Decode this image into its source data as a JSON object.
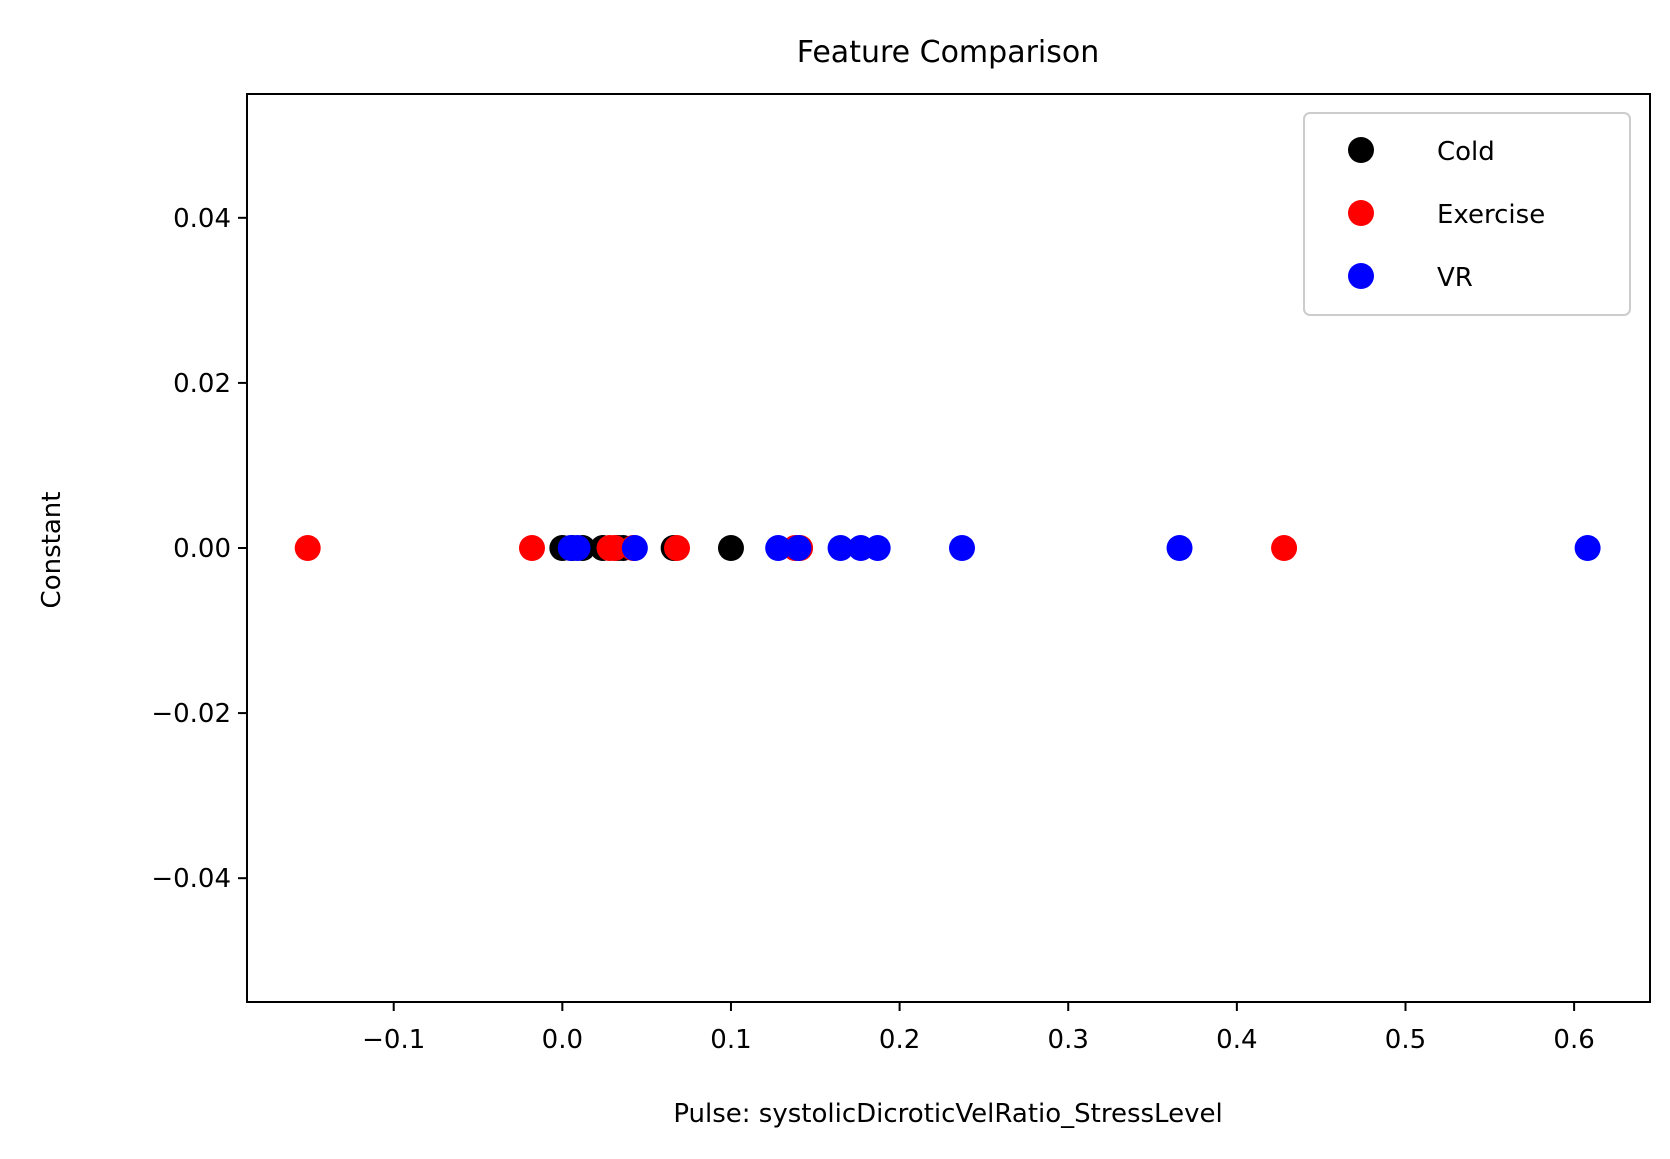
{
  "chart_data": {
    "type": "scatter",
    "title": "Feature Comparison",
    "xlabel": "Pulse: systolicDicroticVelRatio_StressLevel",
    "ylabel": "Constant",
    "xlim": [
      -0.187,
      0.645
    ],
    "ylim": [
      -0.055,
      0.055
    ],
    "xticks": [
      -0.1,
      0.0,
      0.1,
      0.2,
      0.3,
      0.4,
      0.5,
      0.6
    ],
    "xtick_labels": [
      "−0.1",
      "0.0",
      "0.1",
      "0.2",
      "0.3",
      "0.4",
      "0.5",
      "0.6"
    ],
    "yticks": [
      0.04,
      0.02,
      0.0,
      -0.02,
      -0.04
    ],
    "ytick_labels": [
      "0.04",
      "0.02",
      "0.00",
      "−0.02",
      "−0.04"
    ],
    "grid": false,
    "legend_position": "top-right",
    "series": [
      {
        "name": "Cold",
        "color": "#000000",
        "x": [
          0.0,
          0.006,
          0.012,
          0.024,
          0.033,
          0.036,
          0.066,
          0.1
        ],
        "y": [
          0,
          0,
          0,
          0,
          0,
          0,
          0,
          0
        ]
      },
      {
        "name": "Exercise",
        "color": "#ff0000",
        "x": [
          -0.151,
          -0.018,
          0.028,
          0.031,
          0.042,
          0.068,
          0.138,
          0.141,
          0.428
        ],
        "y": [
          0,
          0,
          0,
          0,
          0,
          0,
          0,
          0,
          0
        ]
      },
      {
        "name": "VR",
        "color": "#0000ff",
        "x": [
          0.005,
          0.009,
          0.043,
          0.128,
          0.14,
          0.165,
          0.177,
          0.187,
          0.237,
          0.366,
          0.608
        ],
        "y": [
          0,
          0,
          0,
          0,
          0,
          0,
          0,
          0,
          0,
          0,
          0
        ]
      }
    ]
  }
}
